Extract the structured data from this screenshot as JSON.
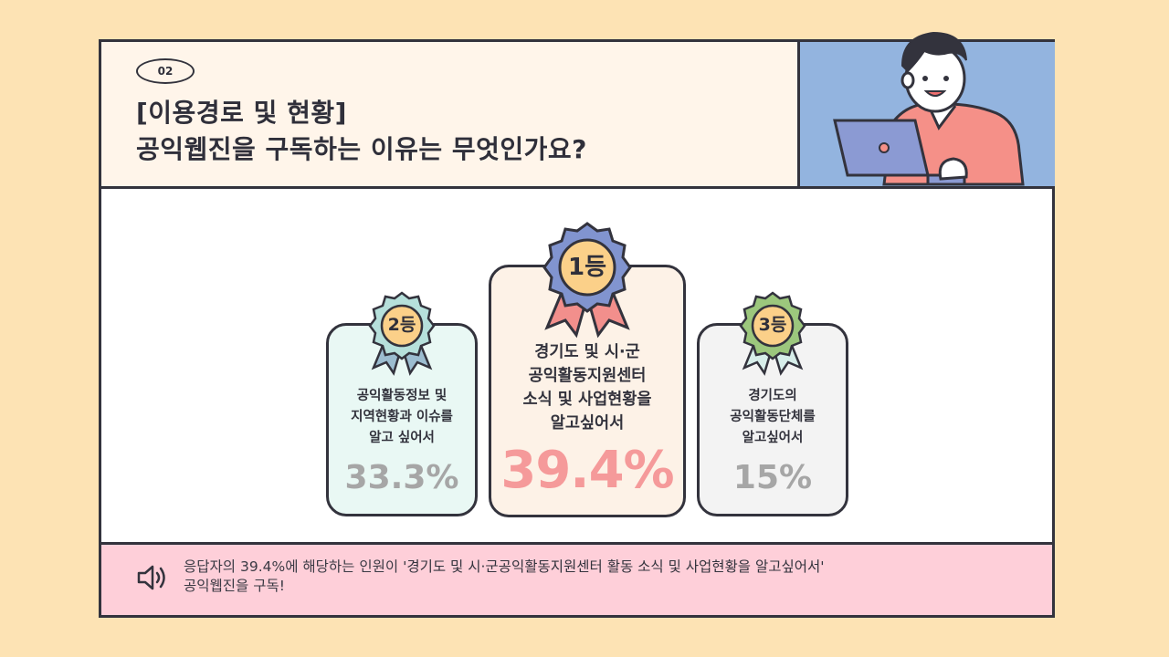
{
  "header": {
    "badge": "02",
    "title_line1": "[이용경로 및 현황]",
    "title_line2": "공익웹진을 구독하는 이유는 무엇인가요?"
  },
  "ranks": [
    {
      "place": "2등",
      "description": "공익활동정보 및\n지역현황과 이슈를\n알고 싶어서",
      "percent_label": "33.3%",
      "percent": 33.3,
      "medal_color": "#b6e0db",
      "ribbon_color": "#9cbdd0"
    },
    {
      "place": "1등",
      "description": "경기도 및 시·군\n공익활동지원센터\n소식 및 사업현황을\n알고싶어서",
      "percent_label": "39.4%",
      "percent": 39.4,
      "medal_color": "#8194cf",
      "ribbon_color": "#f28f8c"
    },
    {
      "place": "3등",
      "description": "경기도의\n공익활동단체를\n알고싶어서",
      "percent_label": "15%",
      "percent": 15,
      "medal_color": "#9cc77d",
      "ribbon_color": "#d7eeea"
    }
  ],
  "footer": {
    "prefix": "응답자의 39.4%에 해당하는 인원이 ",
    "highlight": "'경기도 및 시·군공익활동지원센터 활동 소식 및 사업현황을 알고싶어서'",
    "line2": "공익웹진을 구독!"
  },
  "icons": {
    "speaker": "speaker-icon",
    "illustration": "person-with-laptop-illustration"
  }
}
